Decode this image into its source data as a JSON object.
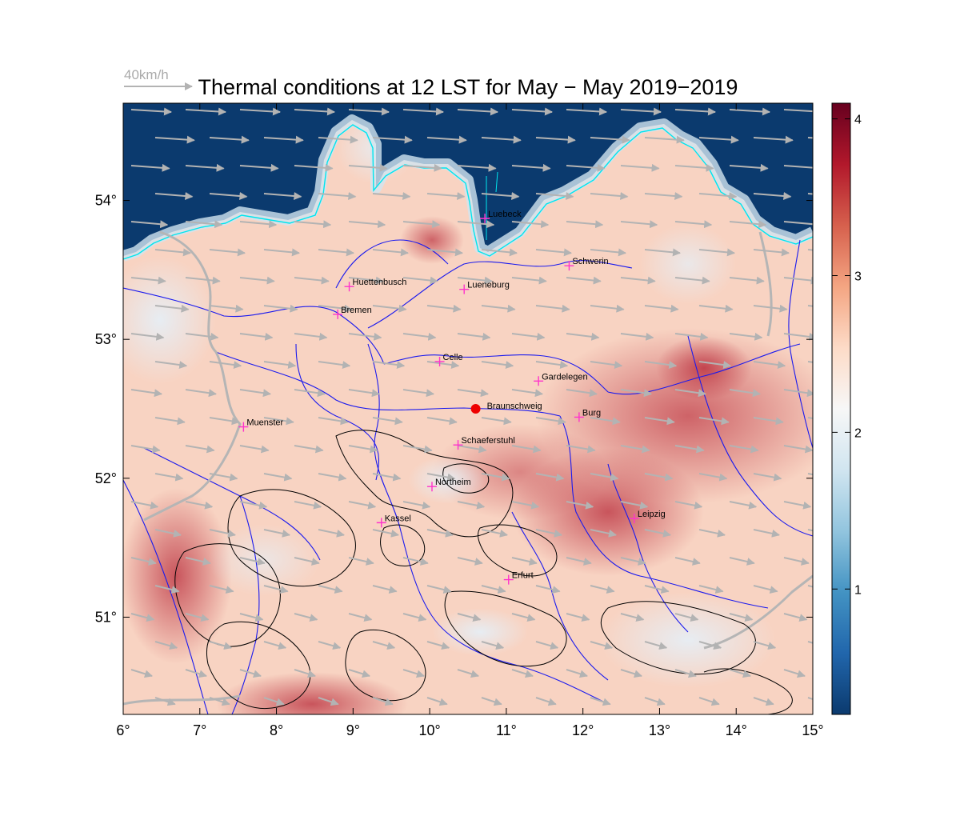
{
  "title": "Thermal conditions at 12 LST for May − May  2019−2019",
  "wind_reference": {
    "label": "40km/h"
  },
  "colors": {
    "sea": "#0b3a6e",
    "coast": "#00e5ee",
    "rivers": "#1a1aee",
    "borders": "#b5b5b5",
    "arrows": "#b3b3b3",
    "markers": "#ff33cc",
    "focus_point": "#ee0000",
    "contours": "#000000"
  },
  "map": {
    "lon_range": [
      6,
      15
    ],
    "lat_range": [
      50.3,
      54.7
    ],
    "x_ticks": [
      "6°",
      "7°",
      "8°",
      "9°",
      "10°",
      "11°",
      "12°",
      "13°",
      "14°",
      "15°"
    ],
    "x_tick_values": [
      6,
      7,
      8,
      9,
      10,
      11,
      12,
      13,
      14,
      15
    ],
    "y_ticks": [
      "51°",
      "52°",
      "53°",
      "54°"
    ],
    "y_tick_values": [
      51,
      52,
      53,
      54
    ]
  },
  "colorbar": {
    "range": [
      0.2,
      4.1
    ],
    "ticks": [
      "1",
      "2",
      "3",
      "4"
    ],
    "tick_values": [
      1,
      2,
      3,
      4
    ],
    "colors": [
      "#0b3a6e",
      "#2166ac",
      "#4393c3",
      "#92c5de",
      "#d1e5f0",
      "#f7f7f7",
      "#fddbc7",
      "#f4a582",
      "#d6604d",
      "#b2182b",
      "#67001f"
    ]
  },
  "focus_point": {
    "name": "Braunschweig",
    "lon": 10.6,
    "lat": 52.5
  },
  "cities": [
    {
      "name": "Luebeck",
      "lon": 10.72,
      "lat": 53.87
    },
    {
      "name": "Schwerin",
      "lon": 11.82,
      "lat": 53.53
    },
    {
      "name": "Huettenbusch",
      "lon": 8.95,
      "lat": 53.38
    },
    {
      "name": "Lueneburg",
      "lon": 10.45,
      "lat": 53.36
    },
    {
      "name": "Bremen",
      "lon": 8.8,
      "lat": 53.18
    },
    {
      "name": "Celle",
      "lon": 10.13,
      "lat": 52.84
    },
    {
      "name": "Gardelegen",
      "lon": 11.42,
      "lat": 52.7
    },
    {
      "name": "Burg",
      "lon": 11.95,
      "lat": 52.44
    },
    {
      "name": "Muenster",
      "lon": 7.57,
      "lat": 52.37
    },
    {
      "name": "Schaeferstuhl",
      "lon": 10.37,
      "lat": 52.24
    },
    {
      "name": "Northeim",
      "lon": 10.03,
      "lat": 51.94
    },
    {
      "name": "Kassel",
      "lon": 9.37,
      "lat": 51.68
    },
    {
      "name": "Leipzig",
      "lon": 12.67,
      "lat": 51.71
    },
    {
      "name": "Erfurt",
      "lon": 11.03,
      "lat": 51.27
    }
  ]
}
